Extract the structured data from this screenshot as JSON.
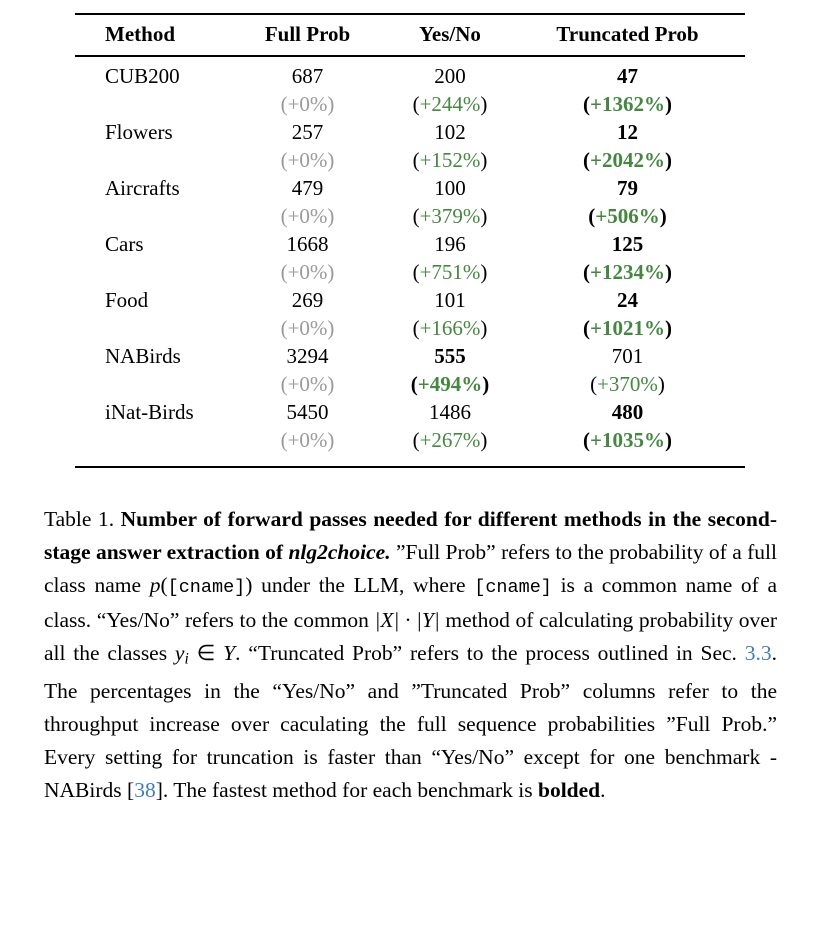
{
  "colors": {
    "green": "#44883f",
    "gray": "#9a9a9a",
    "link_blue": "#3d7dbf",
    "text": "#000000"
  },
  "table": {
    "headers": [
      "Method",
      "Full Prob",
      "Yes/No",
      "Truncated Prob"
    ],
    "rows": [
      {
        "method": "CUB200",
        "cells": [
          {
            "value": "687",
            "value_bold": false,
            "pct": "(+0%)",
            "pct_style": "gray",
            "pct_bold": false
          },
          {
            "value": "200",
            "value_bold": false,
            "pct": "(+244%)",
            "pct_style": "green",
            "pct_bold": false
          },
          {
            "value": "47",
            "value_bold": true,
            "pct": "(+1362%)",
            "pct_style": "green",
            "pct_bold": true
          }
        ]
      },
      {
        "method": "Flowers",
        "cells": [
          {
            "value": "257",
            "value_bold": false,
            "pct": "(+0%)",
            "pct_style": "gray",
            "pct_bold": false
          },
          {
            "value": "102",
            "value_bold": false,
            "pct": "(+152%)",
            "pct_style": "green",
            "pct_bold": false
          },
          {
            "value": "12",
            "value_bold": true,
            "pct": "(+2042%)",
            "pct_style": "green",
            "pct_bold": true
          }
        ]
      },
      {
        "method": "Aircrafts",
        "cells": [
          {
            "value": "479",
            "value_bold": false,
            "pct": "(+0%)",
            "pct_style": "gray",
            "pct_bold": false
          },
          {
            "value": "100",
            "value_bold": false,
            "pct": "(+379%)",
            "pct_style": "green",
            "pct_bold": false
          },
          {
            "value": "79",
            "value_bold": true,
            "pct": "(+506%)",
            "pct_style": "green",
            "pct_bold": true
          }
        ]
      },
      {
        "method": "Cars",
        "cells": [
          {
            "value": "1668",
            "value_bold": false,
            "pct": "(+0%)",
            "pct_style": "gray",
            "pct_bold": false
          },
          {
            "value": "196",
            "value_bold": false,
            "pct": "(+751%)",
            "pct_style": "green",
            "pct_bold": false
          },
          {
            "value": "125",
            "value_bold": true,
            "pct": "(+1234%)",
            "pct_style": "green",
            "pct_bold": true
          }
        ]
      },
      {
        "method": "Food",
        "cells": [
          {
            "value": "269",
            "value_bold": false,
            "pct": "(+0%)",
            "pct_style": "gray",
            "pct_bold": false
          },
          {
            "value": "101",
            "value_bold": false,
            "pct": "(+166%)",
            "pct_style": "green",
            "pct_bold": false
          },
          {
            "value": "24",
            "value_bold": true,
            "pct": "(+1021%)",
            "pct_style": "green",
            "pct_bold": true
          }
        ]
      },
      {
        "method": "NABirds",
        "cells": [
          {
            "value": "3294",
            "value_bold": false,
            "pct": "(+0%)",
            "pct_style": "gray",
            "pct_bold": false
          },
          {
            "value": "555",
            "value_bold": true,
            "pct": "(+494%)",
            "pct_style": "green",
            "pct_bold": true
          },
          {
            "value": "701",
            "value_bold": false,
            "pct": "(+370%)",
            "pct_style": "green",
            "pct_bold": false
          }
        ]
      },
      {
        "method": "iNat-Birds",
        "cells": [
          {
            "value": "5450",
            "value_bold": false,
            "pct": "(+0%)",
            "pct_style": "gray",
            "pct_bold": false
          },
          {
            "value": "1486",
            "value_bold": false,
            "pct": "(+267%)",
            "pct_style": "green",
            "pct_bold": false
          },
          {
            "value": "480",
            "value_bold": true,
            "pct": "(+1035%)",
            "pct_style": "green",
            "pct_bold": true
          }
        ]
      }
    ]
  },
  "caption": {
    "segments": [
      {
        "text": "Table 1. ",
        "style": "regular"
      },
      {
        "text": "Number of forward passes needed for different methods in the second-stage answer extraction of ",
        "style": "bold"
      },
      {
        "text": "nlg2choice.",
        "style": "bolditalic"
      },
      {
        "text": " ”Full Prob” refers to the probability of a full class name ",
        "style": "regular"
      },
      {
        "text": "p",
        "style": "math"
      },
      {
        "text": "(",
        "style": "regular"
      },
      {
        "text": "[cname]",
        "style": "mono"
      },
      {
        "text": ")",
        "style": "regular"
      },
      {
        "text": " under the LLM, where ",
        "style": "regular"
      },
      {
        "text": "[cname]",
        "style": "mono"
      },
      {
        "text": " is a common name of a class. “Yes/No” refers to the common ",
        "style": "regular"
      },
      {
        "text": "|X| · |Y|",
        "style": "math"
      },
      {
        "text": " method of calculating probability over all the classes ",
        "style": "regular"
      },
      {
        "text": "y",
        "style": "math"
      },
      {
        "text": "i",
        "style": "mathsub"
      },
      {
        "text": " ∈ ",
        "style": "regular"
      },
      {
        "text": "Y",
        "style": "math"
      },
      {
        "text": ". “Truncated Prob” refers to the process outlined in Sec. ",
        "style": "regular"
      },
      {
        "text": "3.3",
        "style": "link"
      },
      {
        "text": ". The percentages in the “Yes/No” and ”Truncated Prob” columns refer to the throughput increase over caculating the full sequence probabilities ”Full Prob.” Every setting for truncation is faster than “Yes/No” except for one benchmark - NABirds [",
        "style": "regular"
      },
      {
        "text": "38",
        "style": "link"
      },
      {
        "text": "]. The fastest method for each benchmark is ",
        "style": "regular"
      },
      {
        "text": "bolded",
        "style": "bold"
      },
      {
        "text": ".",
        "style": "regular"
      }
    ]
  }
}
